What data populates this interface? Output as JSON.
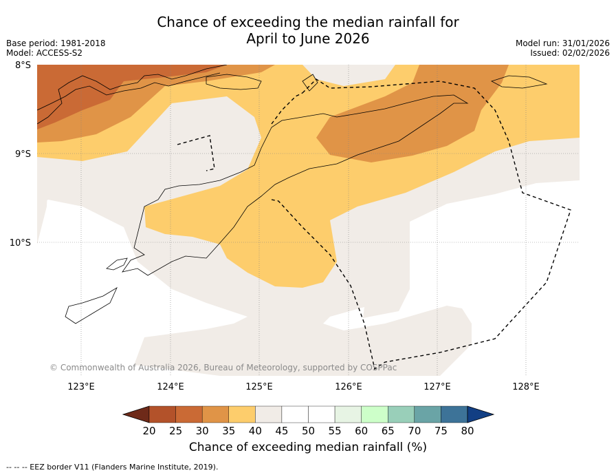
{
  "title_line1": "Chance of exceeding the median rainfall for",
  "title_line2": "April to June 2026",
  "meta_left": {
    "base_period": "Base period: 1981-2018",
    "model": "Model: ACCESS-S2"
  },
  "meta_right": {
    "model_run": "Model run: 31/01/2026",
    "issued": "Issued: 02/02/2026"
  },
  "map": {
    "lat_labels": [
      "8°S",
      "9°S",
      "10°S"
    ],
    "lon_labels": [
      "123°E",
      "124°E",
      "125°E",
      "126°E",
      "127°E",
      "128°E"
    ],
    "copyright": "© Commonwealth of Australia 2026, Bureau of Meteorology, supported by COSPPac"
  },
  "colorbar": {
    "ticks": [
      "20",
      "25",
      "30",
      "35",
      "40",
      "45",
      "50",
      "55",
      "60",
      "65",
      "70",
      "75",
      "80"
    ],
    "colors": [
      "#6e2a19",
      "#b3522a",
      "#ca6a35",
      "#e09447",
      "#fdcd6c",
      "#f1ece7",
      "#ffffff",
      "#ffffff",
      "#e7f4e4",
      "#cdffc9",
      "#99cfb9",
      "#6aa4a6",
      "#3d7398",
      "#123f84"
    ],
    "title": "Chance of exceeding median rainfall (%)"
  },
  "footnote": "--  --  -- EEZ border V11 (Flanders Marine Institute, 2019)."
}
